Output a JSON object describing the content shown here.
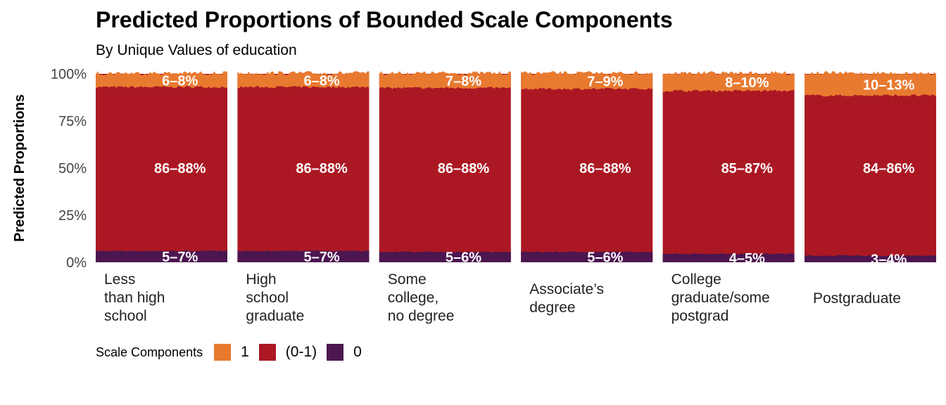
{
  "title": "Predicted Proportions of Bounded Scale Components",
  "subtitle": "By Unique Values of education",
  "chart_data": {
    "type": "area",
    "ylabel": "Predicted Proportions",
    "ylim": [
      0,
      1
    ],
    "y_ticks": [
      "0%",
      "25%",
      "50%",
      "75%",
      "100%"
    ],
    "y_tick_values": [
      0,
      0.25,
      0.5,
      0.75,
      1.0
    ],
    "grid": false,
    "legend_title": "Scale Components",
    "legend_position": "bottom-left",
    "components": [
      {
        "name": "1",
        "color": "#E87A30"
      },
      {
        "name": "(0-1)",
        "color": "#AB1823"
      },
      {
        "name": "0",
        "color": "#4C1650"
      }
    ],
    "panels": [
      {
        "label": "Less\nthan high\nschool",
        "p0": 0.06,
        "p1": 0.07,
        "labels": {
          "top": "6–8%",
          "middle": "86–88%",
          "bottom": "5–7%"
        }
      },
      {
        "label": "High\nschool\ngraduate",
        "p0": 0.06,
        "p1": 0.07,
        "labels": {
          "top": "6–8%",
          "middle": "86–88%",
          "bottom": "5–7%"
        }
      },
      {
        "label": "Some\ncollege,\nno degree",
        "p0": 0.055,
        "p1": 0.075,
        "labels": {
          "top": "7–8%",
          "middle": "86–88%",
          "bottom": "5–6%"
        }
      },
      {
        "label": "Associate’s\ndegree",
        "p0": 0.055,
        "p1": 0.08,
        "labels": {
          "top": "7–9%",
          "middle": "86–88%",
          "bottom": "5–6%"
        }
      },
      {
        "label": "College\ngraduate/some\npostgrad",
        "p0": 0.045,
        "p1": 0.09,
        "labels": {
          "top": "8–10%",
          "middle": "85–87%",
          "bottom": "4–5%"
        }
      },
      {
        "label": "Postgraduate",
        "p0": 0.035,
        "p1": 0.115,
        "labels": {
          "top": "10–13%",
          "middle": "84–86%",
          "bottom": "3–4%"
        }
      }
    ]
  }
}
